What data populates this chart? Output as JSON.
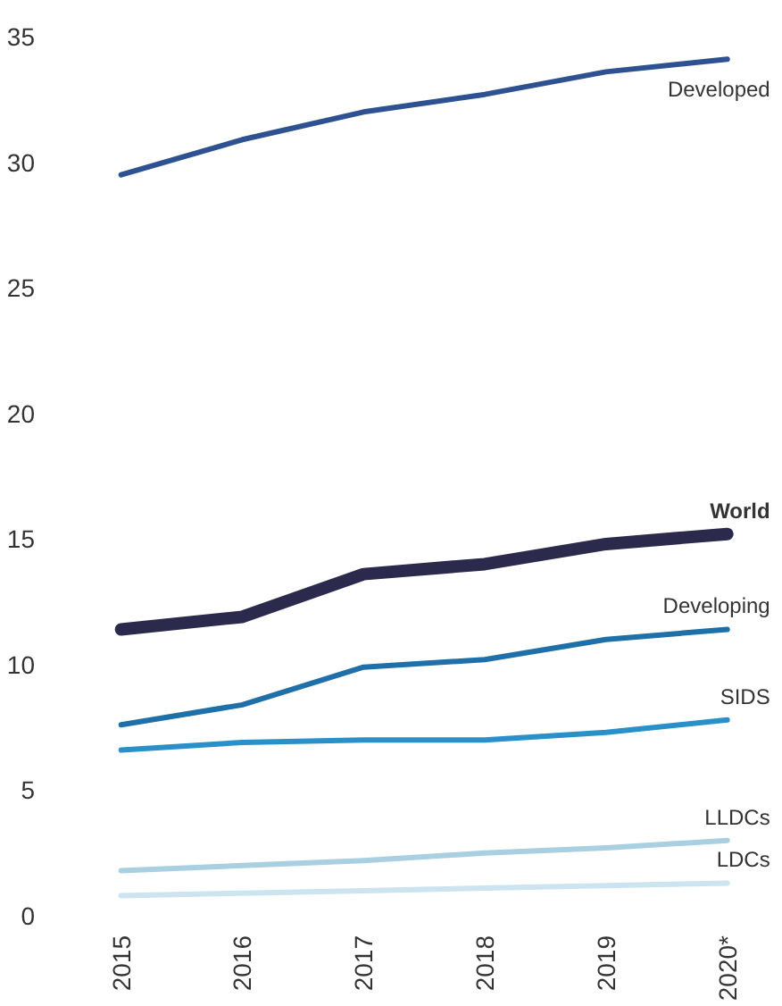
{
  "chart_data": {
    "type": "line",
    "categories": [
      "2015",
      "2016",
      "2017",
      "2018",
      "2019",
      "2020*"
    ],
    "ylim": [
      0,
      35
    ],
    "yticks": [
      0,
      5,
      10,
      15,
      20,
      25,
      30,
      35
    ],
    "grid": false,
    "series": [
      {
        "name": "Developed",
        "color": "#2e5191",
        "values": [
          29.5,
          30.9,
          32.0,
          32.7,
          33.6,
          34.1
        ]
      },
      {
        "name": "World",
        "color": "#2b2a4c",
        "values": [
          11.4,
          11.9,
          13.6,
          14.0,
          14.8,
          15.2
        ]
      },
      {
        "name": "Developing",
        "color": "#1f6fa8",
        "values": [
          7.6,
          8.4,
          9.9,
          10.2,
          11.0,
          11.4
        ]
      },
      {
        "name": "SIDS",
        "color": "#2a90c9",
        "values": [
          6.6,
          6.9,
          7.0,
          7.0,
          7.3,
          7.8
        ]
      },
      {
        "name": "LLDCs",
        "color": "#a9d0e1",
        "values": [
          1.8,
          2.0,
          2.2,
          2.5,
          2.7,
          3.0
        ]
      },
      {
        "name": "LDCs",
        "color": "#cbe4ef",
        "values": [
          0.8,
          0.9,
          1.0,
          1.1,
          1.2,
          1.3
        ]
      }
    ]
  }
}
